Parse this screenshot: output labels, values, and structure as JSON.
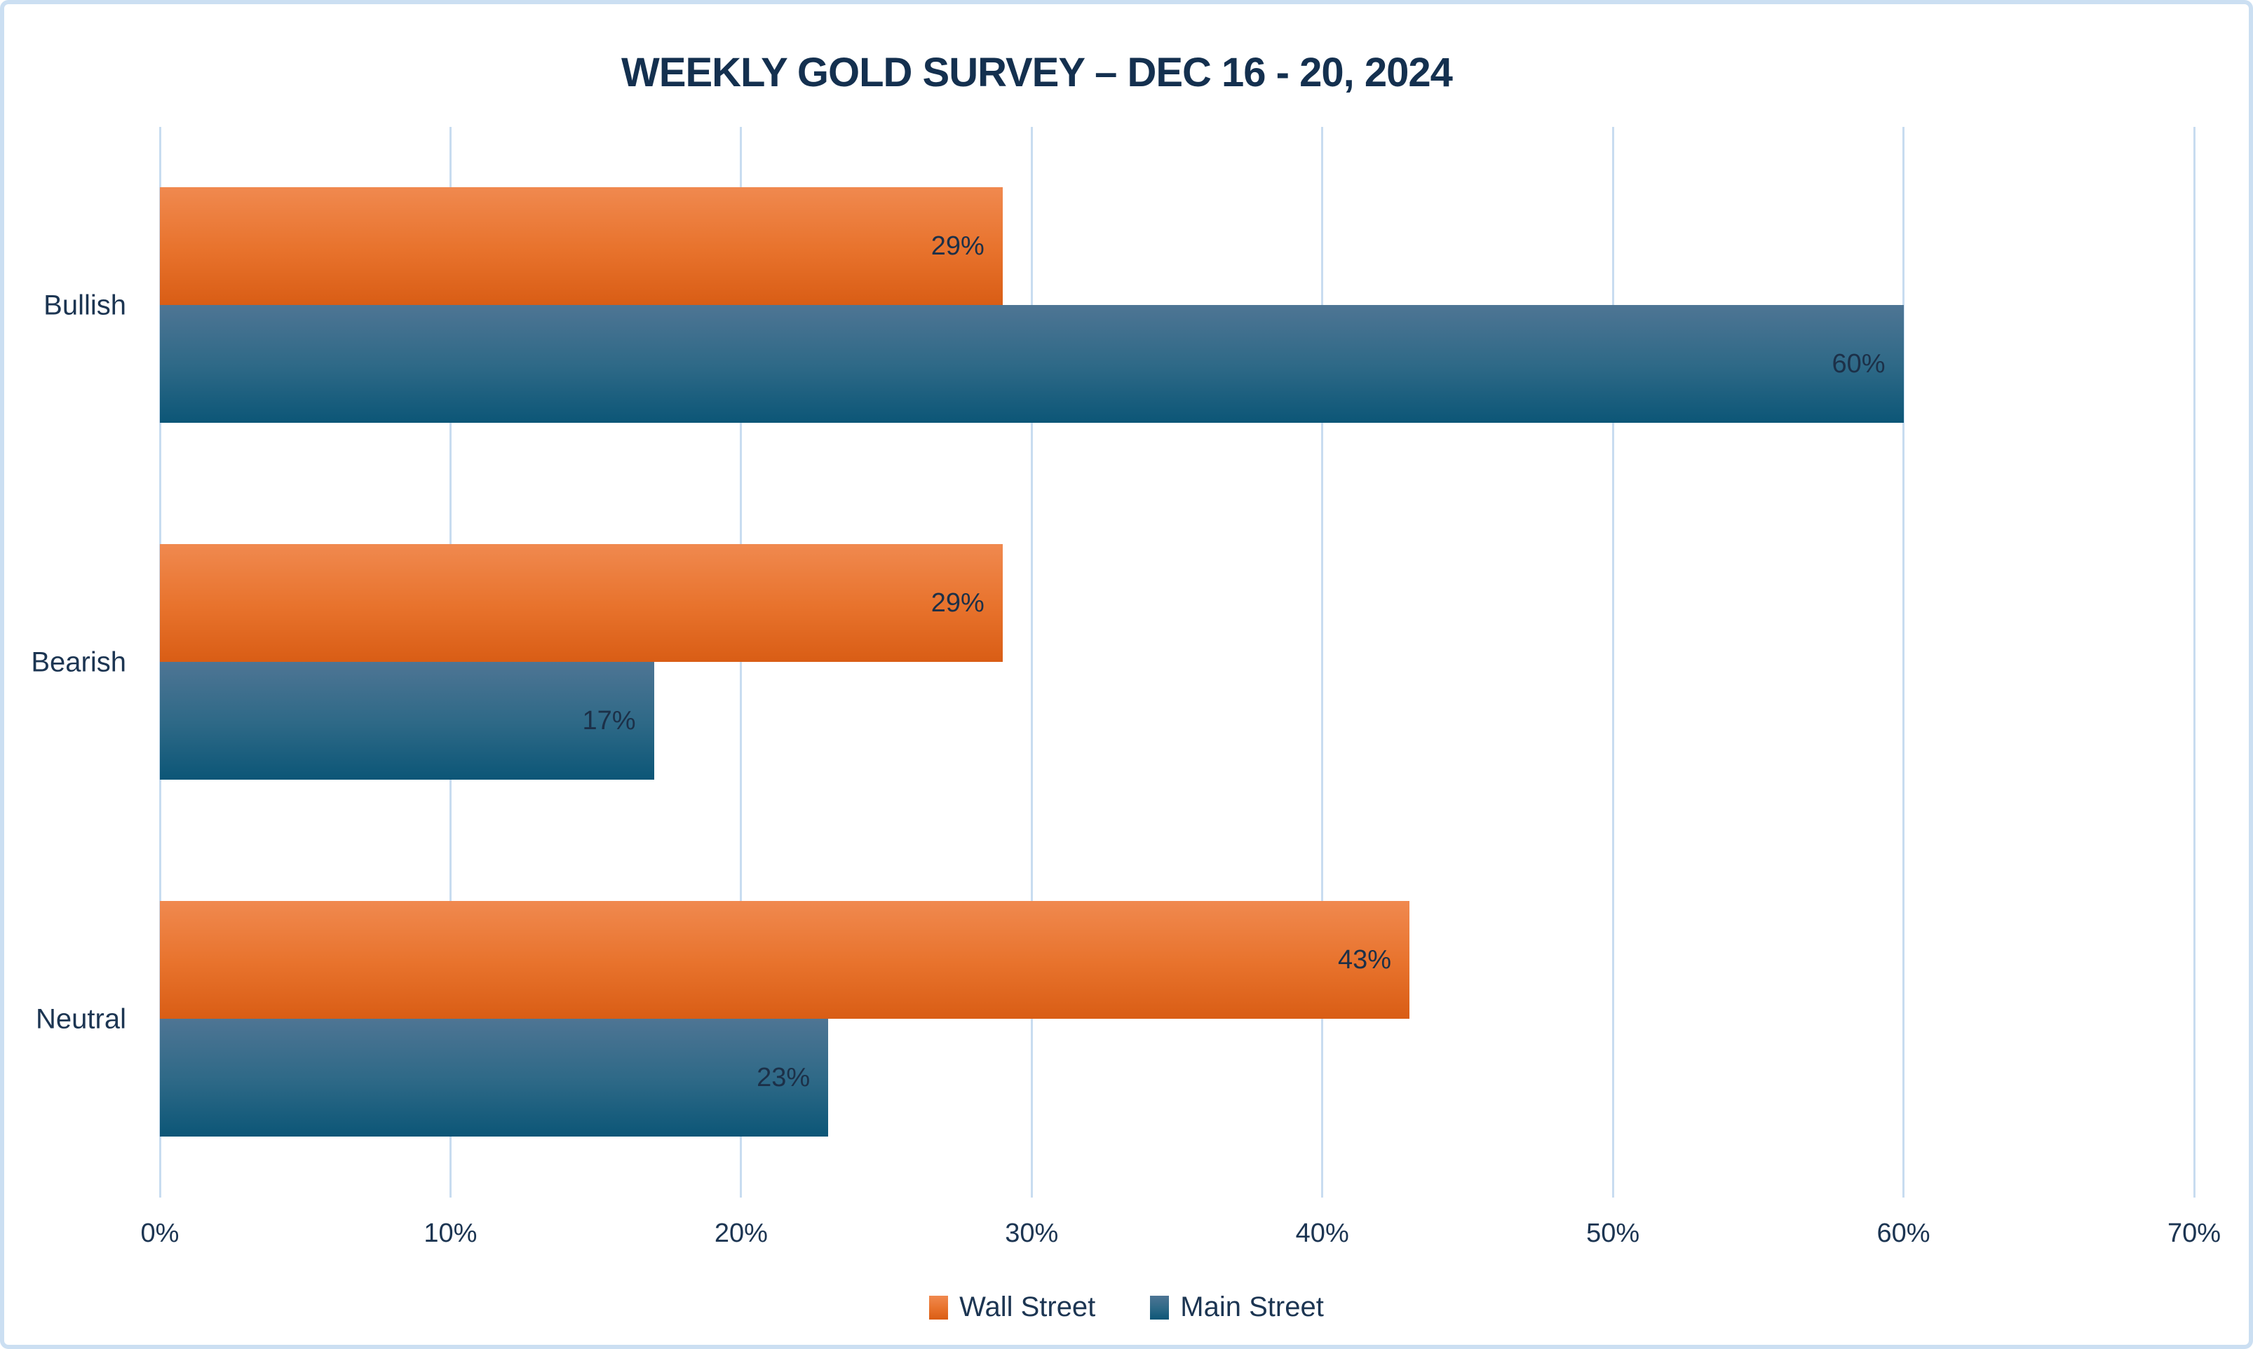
{
  "title": "WEEKLY GOLD SURVEY – DEC 16 - 20, 2024",
  "colors": {
    "wall_street_orange": "#E8742E",
    "main_street_blue": "#1F6384",
    "text_navy": "#1C3552",
    "gridline": "#C8DCF0",
    "frame_border": "#CBDFF2"
  },
  "chart_data": {
    "type": "bar",
    "orientation": "horizontal",
    "title": "WEEKLY GOLD SURVEY – DEC 16 - 20, 2024",
    "categories": [
      "Bullish",
      "Bearish",
      "Neutral"
    ],
    "series": [
      {
        "name": "Wall Street",
        "color": "#E8742E",
        "values": [
          29,
          29,
          43
        ],
        "labels": [
          "29%",
          "29%",
          "43%"
        ]
      },
      {
        "name": "Main Street",
        "color": "#1F6384",
        "values": [
          60,
          17,
          23
        ],
        "labels": [
          "60%",
          "17%",
          "23%"
        ]
      }
    ],
    "x_ticks": [
      "0%",
      "10%",
      "20%",
      "30%",
      "40%",
      "50%",
      "60%",
      "70%"
    ],
    "xlim": [
      0,
      70
    ],
    "grid": true,
    "legend_position": "bottom",
    "value_label_position": "inside-end"
  }
}
